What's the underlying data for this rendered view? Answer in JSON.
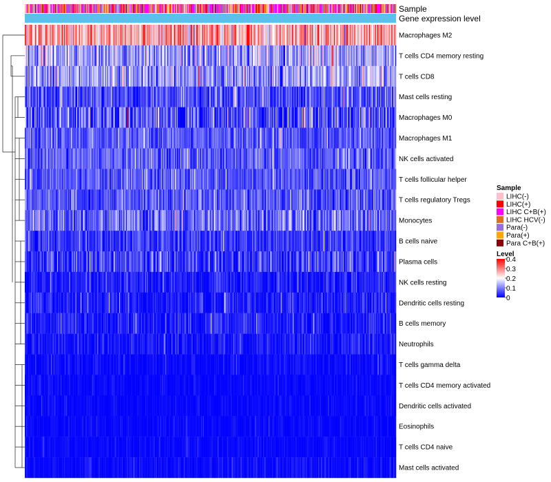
{
  "chart_data": {
    "type": "heatmap",
    "title": "",
    "n_samples": 425,
    "tracks": [
      {
        "name": "Sample"
      },
      {
        "name": "Gene expression level"
      }
    ],
    "rows": [
      {
        "label": "Macrophages M2",
        "mean": 0.27,
        "spread": 0.07
      },
      {
        "label": "T cells CD4 memory resting",
        "mean": 0.12,
        "spread": 0.06
      },
      {
        "label": "T cells CD8",
        "mean": 0.12,
        "spread": 0.06
      },
      {
        "label": "Mast cells resting",
        "mean": 0.06,
        "spread": 0.05
      },
      {
        "label": "Macrophages M0",
        "mean": 0.06,
        "spread": 0.07
      },
      {
        "label": "Macrophages M1",
        "mean": 0.07,
        "spread": 0.035
      },
      {
        "label": "NK cells activated",
        "mean": 0.07,
        "spread": 0.04
      },
      {
        "label": "T cells follicular helper",
        "mean": 0.065,
        "spread": 0.04
      },
      {
        "label": "T cells regulatory  Tregs",
        "mean": 0.065,
        "spread": 0.04
      },
      {
        "label": "Monocytes",
        "mean": 0.08,
        "spread": 0.05
      },
      {
        "label": "B cells naive",
        "mean": 0.04,
        "spread": 0.035
      },
      {
        "label": "Plasma cells",
        "mean": 0.045,
        "spread": 0.045
      },
      {
        "label": "NK cells resting",
        "mean": 0.02,
        "spread": 0.03
      },
      {
        "label": "Dendritic cells resting",
        "mean": 0.02,
        "spread": 0.03
      },
      {
        "label": "B cells memory",
        "mean": 0.02,
        "spread": 0.03
      },
      {
        "label": "Neutrophils",
        "mean": 0.015,
        "spread": 0.025
      },
      {
        "label": "T cells gamma delta",
        "mean": 0.006,
        "spread": 0.015
      },
      {
        "label": "T cells CD4 memory activated",
        "mean": 0.004,
        "spread": 0.01
      },
      {
        "label": "Dendritic cells activated",
        "mean": 0.004,
        "spread": 0.01
      },
      {
        "label": "Eosinophils",
        "mean": 0.004,
        "spread": 0.01
      },
      {
        "label": "T cells CD4 naive",
        "mean": 0.004,
        "spread": 0.01
      },
      {
        "label": "Mast cells activated",
        "mean": 0.006,
        "spread": 0.015
      }
    ],
    "legend_sample": {
      "title": "Sample",
      "items": [
        {
          "label": "LIHC(-)",
          "color": "#FFC0CB"
        },
        {
          "label": "LIHC(+)",
          "color": "#FF0000"
        },
        {
          "label": "LIHC C+B(+)",
          "color": "#FF00FF"
        },
        {
          "label": "LIHC HCV(-)",
          "color": "#E07020"
        },
        {
          "label": "Para(-)",
          "color": "#9370DB"
        },
        {
          "label": "Para(+)",
          "color": "#FFA500"
        },
        {
          "label": "Para C+B(+)",
          "color": "#8B0000"
        }
      ],
      "weights": [
        0.16,
        0.13,
        0.28,
        0.12,
        0.17,
        0.1,
        0.04
      ]
    },
    "legend_level": {
      "title": "Level",
      "ticks": [
        "0.4",
        "0.3",
        "0.2",
        "0.1",
        "0"
      ],
      "tick_values": [
        0.4,
        0.3,
        0.2,
        0.1,
        0
      ],
      "range": [
        0,
        0.4
      ],
      "colors": [
        "#0000FF",
        "#FFFFFF",
        "#FF0000"
      ]
    },
    "gene_expression_track_color": "#5BC0EB",
    "dendrogram": "rows"
  }
}
